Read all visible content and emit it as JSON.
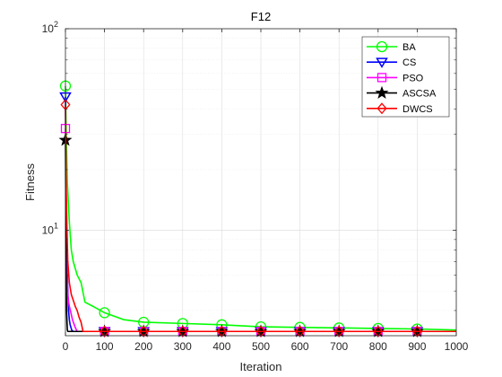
{
  "chart_data": {
    "type": "line",
    "title": "F12",
    "xlabel": "Iteration",
    "ylabel": "Fitness",
    "yscale": "log",
    "xlim": [
      0,
      1000
    ],
    "ylim": [
      3,
      100
    ],
    "xticks": [
      0,
      100,
      200,
      300,
      400,
      500,
      600,
      700,
      800,
      900,
      1000
    ],
    "yticks": [
      10,
      100
    ],
    "yticklabels": [
      "10^1",
      "10^2"
    ],
    "grid": true,
    "legend_position": "top-right",
    "series": [
      {
        "name": "BA",
        "color": "#00ff00",
        "marker": "circle",
        "x": [
          0,
          2,
          5,
          10,
          15,
          20,
          30,
          40,
          50,
          60,
          80,
          100,
          150,
          200,
          300,
          400,
          500,
          600,
          700,
          800,
          900,
          1000
        ],
        "y": [
          52,
          30,
          17,
          11,
          8,
          7,
          6,
          5.5,
          4.4,
          4.3,
          4.1,
          3.9,
          3.6,
          3.5,
          3.45,
          3.4,
          3.32,
          3.3,
          3.28,
          3.26,
          3.24,
          3.2
        ],
        "markers_x": [
          0,
          100,
          200,
          300,
          400,
          500,
          600,
          700,
          800,
          900
        ],
        "markers_y": [
          52,
          3.9,
          3.5,
          3.45,
          3.4,
          3.32,
          3.3,
          3.28,
          3.26,
          3.24
        ]
      },
      {
        "name": "CS",
        "color": "#0000ff",
        "marker": "triangle-down",
        "x": [
          0,
          1,
          2,
          4,
          6,
          8,
          10,
          12,
          14,
          16,
          20,
          1000
        ],
        "y": [
          46,
          22,
          12,
          7,
          5,
          4,
          3.6,
          3.4,
          3.3,
          3.2,
          3.15,
          3.15
        ],
        "markers_x": [
          0,
          100,
          200,
          300,
          400,
          500,
          600,
          700,
          800,
          900
        ],
        "markers_y": [
          46,
          3.15,
          3.15,
          3.15,
          3.15,
          3.15,
          3.15,
          3.15,
          3.15,
          3.15
        ]
      },
      {
        "name": "PSO",
        "color": "#ff00ff",
        "marker": "square",
        "x": [
          0,
          1,
          2,
          3,
          4,
          6,
          8,
          10,
          14,
          18,
          25,
          30,
          1000
        ],
        "y": [
          32,
          20,
          12,
          8,
          6,
          4.8,
          4.4,
          4.2,
          3.9,
          3.6,
          3.3,
          3.15,
          3.15
        ],
        "markers_x": [
          0,
          100,
          200,
          300,
          400,
          500,
          600,
          700,
          800,
          900
        ],
        "markers_y": [
          32,
          3.15,
          3.15,
          3.15,
          3.15,
          3.15,
          3.15,
          3.15,
          3.15,
          3.15
        ]
      },
      {
        "name": "ASCSA",
        "color": "#000000",
        "marker": "star",
        "x": [
          0,
          1,
          2,
          3,
          4,
          5,
          6,
          1000
        ],
        "y": [
          28,
          12,
          6,
          4,
          3.5,
          3.2,
          3.15,
          3.15
        ],
        "markers_x": [
          0,
          100,
          200,
          300,
          400,
          500,
          600,
          700,
          800,
          900
        ],
        "markers_y": [
          28,
          3.15,
          3.15,
          3.15,
          3.15,
          3.15,
          3.15,
          3.15,
          3.15,
          3.15
        ]
      },
      {
        "name": "DWCS",
        "color": "#ff0000",
        "marker": "diamond",
        "x": [
          0,
          1,
          2,
          4,
          6,
          10,
          15,
          20,
          25,
          30,
          35,
          40,
          45,
          1000
        ],
        "y": [
          42,
          25,
          16,
          10,
          7,
          5.5,
          4.8,
          4.5,
          4.2,
          4.0,
          3.7,
          3.5,
          3.15,
          3.15
        ],
        "markers_x": [
          0,
          100,
          200,
          300,
          400,
          500,
          600,
          700,
          800,
          900
        ],
        "markers_y": [
          42,
          3.15,
          3.15,
          3.15,
          3.15,
          3.15,
          3.15,
          3.15,
          3.15,
          3.15
        ]
      }
    ]
  }
}
